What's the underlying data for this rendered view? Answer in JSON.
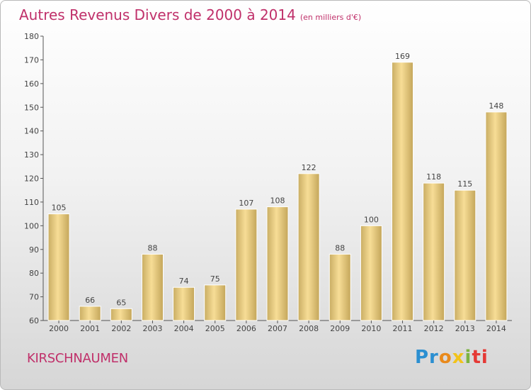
{
  "title": "Autres Revenus Divers de 2000 à 2014",
  "title_unit": "(en milliers d'€)",
  "town": "KIRSCHNAUMEN",
  "logo": {
    "p1": "Pr",
    "p2": "o",
    "p3": "x",
    "p4": "i",
    "p5": "ti"
  },
  "colors": {
    "title": "#c0306a",
    "bar_light": "#f7dd96",
    "bar_dark": "#c9ad63"
  },
  "chart_data": {
    "type": "bar",
    "title": "Autres Revenus Divers de 2000 à 2014",
    "xlabel": "",
    "ylabel": "",
    "categories": [
      "2000",
      "2001",
      "2002",
      "2003",
      "2004",
      "2005",
      "2006",
      "2007",
      "2008",
      "2009",
      "2010",
      "2011",
      "2012",
      "2013",
      "2014"
    ],
    "values": [
      105,
      66,
      65,
      88,
      74,
      75,
      107,
      108,
      122,
      88,
      100,
      169,
      118,
      115,
      148
    ],
    "ylim": [
      60,
      180
    ],
    "yticks": [
      60,
      70,
      80,
      90,
      100,
      110,
      120,
      130,
      140,
      150,
      160,
      170,
      180
    ],
    "grid": false,
    "legend": "none"
  }
}
